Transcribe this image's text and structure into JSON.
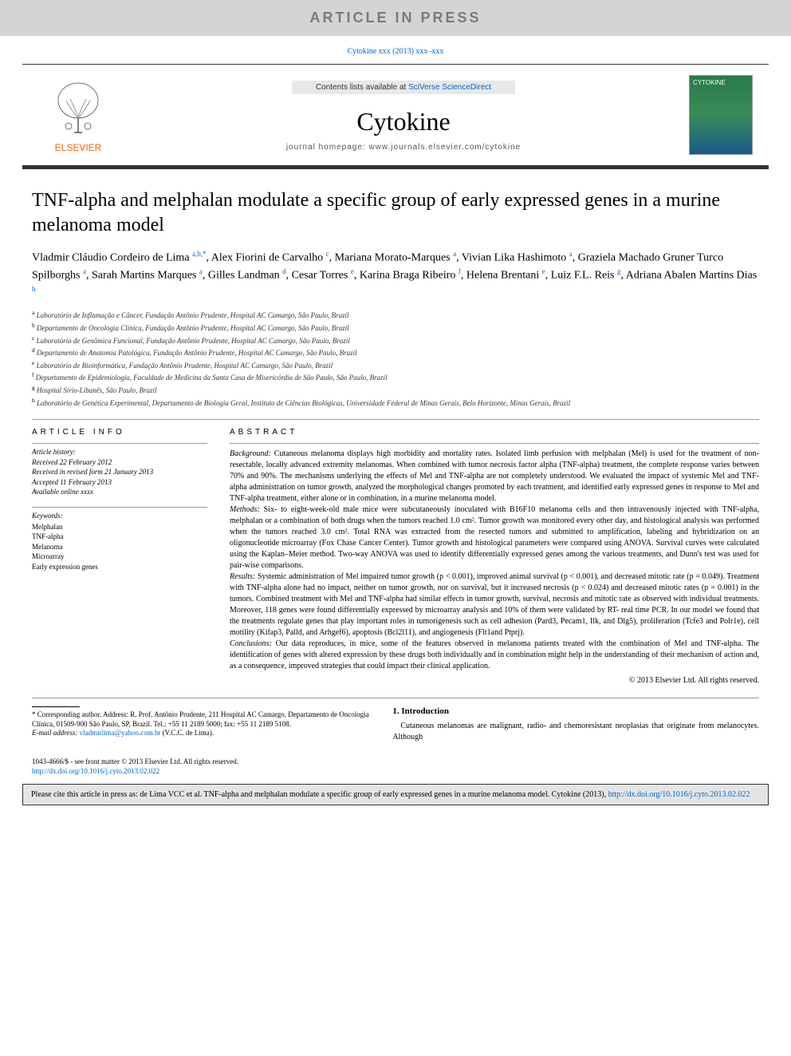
{
  "banner": {
    "text": "ARTICLE IN PRESS"
  },
  "citation": {
    "text": "Cytokine xxx (2013) xxx–xxx"
  },
  "masthead": {
    "contents_text": "Contents lists available at ",
    "contents_link": "SciVerse ScienceDirect",
    "journal_title": "Cytokine",
    "homepage_label": "journal homepage: www.journals.elsevier.com/cytokine",
    "publisher": "ELSEVIER",
    "cover_label": "CYTOKINE"
  },
  "article": {
    "title": "TNF-alpha and melphalan modulate a specific group of early expressed genes in a murine melanoma model",
    "authors_html": "Vladmir Cláudio Cordeiro de Lima <sup>a,b,*</sup>, Alex Fiorini de Carvalho <sup>c</sup>, Mariana Morato-Marques <sup>a</sup>, Vivian Lika Hashimoto <sup>a</sup>, Graziela Machado Gruner Turco Spilborghs <sup>a</sup>, Sarah Martins Marques <sup>a</sup>, Gilles Landman <sup>d</sup>, Cesar Torres <sup>e</sup>, Karina Braga Ribeiro <sup>f</sup>, Helena Brentani <sup>e</sup>, Luiz F.L. Reis <sup>g</sup>, Adriana Abalen Martins Dias <sup>h</sup>",
    "affiliations": [
      {
        "label": "a",
        "text": "Laboratório de Inflamação e Câncer, Fundação Antônio Prudente, Hospital AC Camargo, São Paulo, Brazil"
      },
      {
        "label": "b",
        "text": "Departamento de Oncologia Clínica, Fundação Antônio Prudente, Hospital AC Camargo, São Paulo, Brazil"
      },
      {
        "label": "c",
        "text": "Laboratório de Genômica Funcional, Fundação Antônio Prudente, Hospital AC Camargo, São Paulo, Brazil"
      },
      {
        "label": "d",
        "text": "Departamento de Anatomia Patológica, Fundação Antônio Prudente, Hospital AC Camargo, São Paulo, Brazil"
      },
      {
        "label": "e",
        "text": "Laboratório de Bioinformática, Fundação Antônio Prudente, Hospital AC Camargo, São Paulo, Brazil"
      },
      {
        "label": "f",
        "text": "Departamento de Epidemiologia, Faculdade de Medicina da Santa Casa de Misericórdia de São Paulo, São Paulo, Brazil"
      },
      {
        "label": "g",
        "text": "Hospital Sírio-Libanês, São Paulo, Brazil"
      },
      {
        "label": "h",
        "text": "Laboratório de Genética Experimental, Departamento de Biologia Geral, Instituto de Ciências Biológicas, Universidade Federal de Minas Gerais, Belo Horizonte, Minas Gerais, Brazil"
      }
    ]
  },
  "info": {
    "heading": "ARTICLE INFO",
    "history_label": "Article history:",
    "history": [
      "Received 22 February 2012",
      "Received in revised form 21 January 2013",
      "Accepted 11 February 2013",
      "Available online xxxx"
    ],
    "keywords_label": "Keywords:",
    "keywords": [
      "Melphalan",
      "TNF-alpha",
      "Melanoma",
      "Microarray",
      "Early expression genes"
    ]
  },
  "abstract": {
    "heading": "ABSTRACT",
    "background_label": "Background:",
    "background": " Cutaneous melanoma displays high morbidity and mortality rates. Isolated limb perfusion with melphalan (Mel) is used for the treatment of non-resectable, locally advanced extremity melanomas. When combined with tumor necrosis factor alpha (TNF-alpha) treatment, the complete response varies between 70% and 90%. The mechanisms underlying the effects of Mel and TNF-alpha are not completely understood. We evaluated the impact of systemic Mel and TNF-alpha administration on tumor growth, analyzed the morphological changes promoted by each treatment, and identified early expressed genes in response to Mel and TNF-alpha treatment, either alone or in combination, in a murine melanoma model.",
    "methods_label": "Methods:",
    "methods": " Six- to eight-week-old male mice were subcutaneously inoculated with B16F10 melanoma cells and then intravenously injected with TNF-alpha, melphalan or a combination of both drugs when the tumors reached 1.0 cm². Tumor growth was monitored every other day, and histological analysis was performed when the tumors reached 3.0 cm². Total RNA was extracted from the resected tumors and submitted to amplification, labeling and hybridization on an oligonucleotide microarray (Fox Chase Cancer Center). Tumor growth and histological parameters were compared using ANOVA. Survival curves were calculated using the Kaplan–Meier method. Two-way ANOVA was used to identify differentially expressed genes among the various treatments, and Dunn's test was used for pair-wise comparisons.",
    "results_label": "Results:",
    "results": " Systemic administration of Mel impaired tumor growth (p < 0.001), improved animal survival (p < 0.001), and decreased mitotic rate (p = 0.049). Treatment with TNF-alpha alone had no impact, neither on tumor growth, nor on survival, but it increased necrosis (p < 0.024) and decreased mitotic rates (p = 0.001) in the tumors. Combined treatment with Mel and TNF-alpha had similar effects in tumor growth, survival, necrosis and mitotic rate as observed with individual treatments. Moreover, 118 genes were found differentially expressed by microarray analysis and 10% of them were validated by RT- real time PCR. In our model we found that the treatments regulate genes that play important roles in tumorigenesis such as cell adhesion (Pard3, Pecam1, Ilk, and Dlg5), proliferation (Tcfe3 and Polr1e), cell motility (Kifap3, Palld, and Arhgef6), apoptosis (Bcl2l11), and angiogenesis (Flt1and Ptprj).",
    "conclusions_label": "Conclusions:",
    "conclusions": " Our data reproduces, in mice, some of the features observed in melanoma patients treated with the combination of Mel and TNF-alpha. The identification of genes with altered expression by these drugs both individually and in combination might help in the understanding of their mechanism of action and, as a consequence, improved strategies that could impact their clinical application.",
    "copyright": "© 2013 Elsevier Ltd. All rights reserved."
  },
  "corresponding": {
    "label": "* Corresponding author. Address: R. Prof. Antônio Prudente, 211 Hospital AC Camargo, Departamento de Oncologia Clínica, 01509-900 São Paulo, SP, Brazil. Tel.: +55 11 2189 5000; fax: +55 11 2189 5108.",
    "email_label": "E-mail address: ",
    "email": "vladmirlima@yahoo.com.br",
    "email_suffix": " (V.C.C. de Lima)."
  },
  "intro": {
    "heading": "1. Introduction",
    "text": "Cutaneous melanomas are malignant, radio- and chemoresistant neoplasias that originate from melanocytes. Although"
  },
  "footer": {
    "issn": "1043-4666/$ - see front matter © 2013 Elsevier Ltd. All rights reserved.",
    "doi": "http://dx.doi.org/10.1016/j.cyto.2013.02.022"
  },
  "citebox": {
    "text": "Please cite this article in press as: de Lima VCC et al. TNF-alpha and melphalan modulate a specific group of early expressed genes in a murine melanoma model. Cytokine (2013), ",
    "doi": "http://dx.doi.org/10.1016/j.cyto.2013.02.022"
  },
  "colors": {
    "link": "#0066cc",
    "banner_bg": "#d4d4d4",
    "banner_text": "#7a7a7a",
    "elsevier_orange": "#ff6600",
    "citebox_bg": "#e4e4e4"
  }
}
